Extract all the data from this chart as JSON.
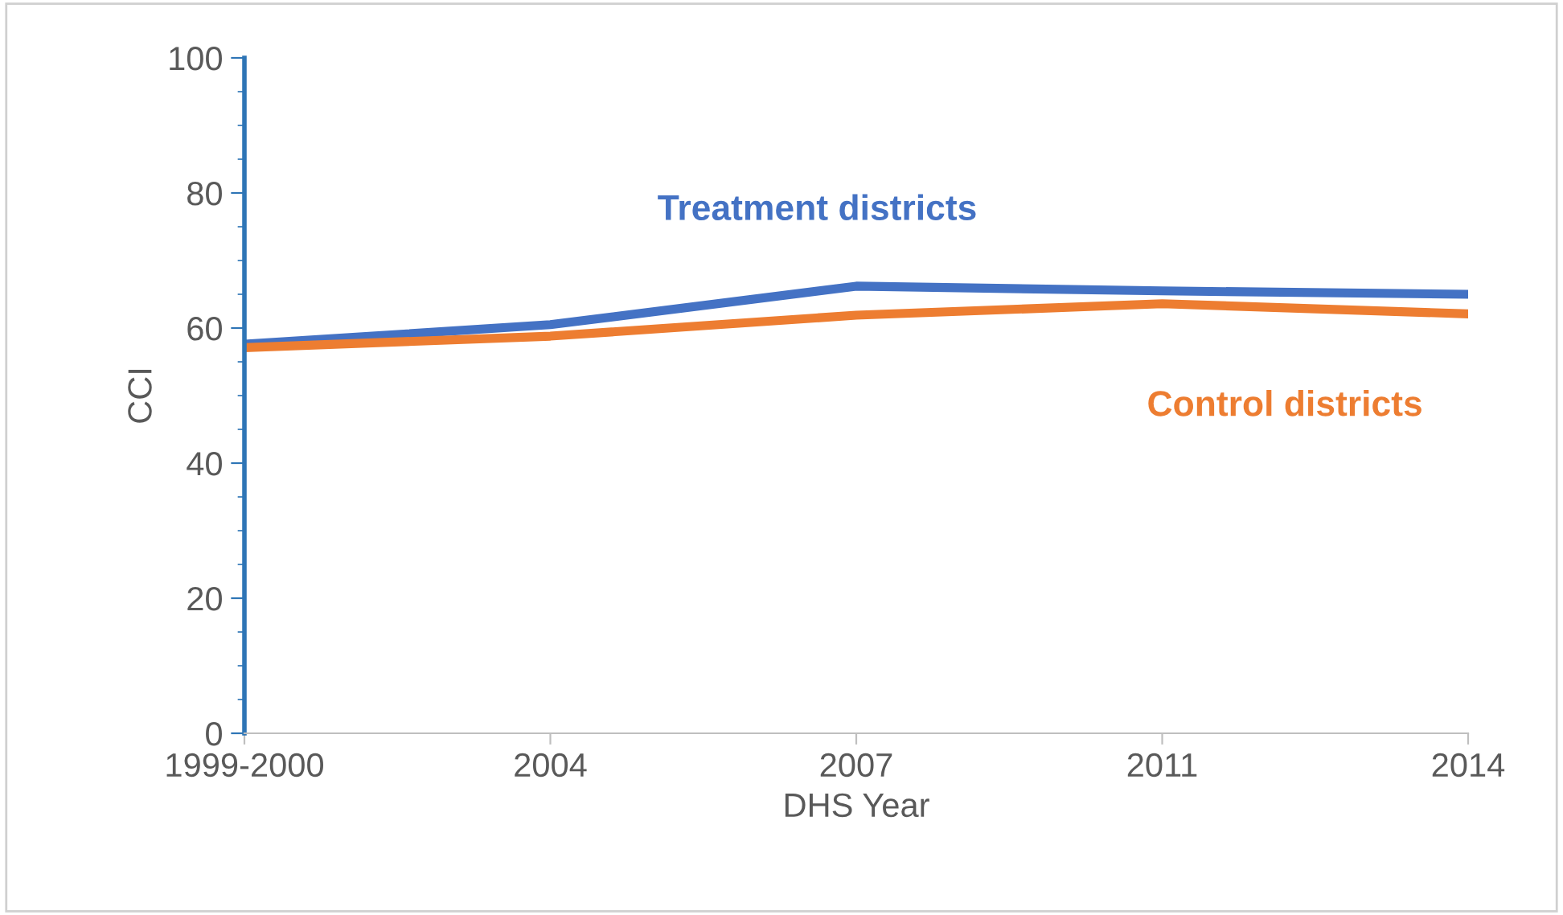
{
  "chart_data": {
    "type": "line",
    "xlabel": "DHS Year",
    "ylabel": "CCI",
    "categories": [
      "1999-2000",
      "2004",
      "2007",
      "2011",
      "2014"
    ],
    "ylim": [
      0,
      100
    ],
    "yticks": [
      0,
      20,
      40,
      60,
      80,
      100
    ],
    "grid": false,
    "legend": false,
    "marker": "none",
    "line_style": "solid",
    "series": [
      {
        "name": "Treatment districts",
        "color": "#4472c4",
        "values": [
          57.6,
          60.5,
          66.2,
          65.5,
          65.0
        ]
      },
      {
        "name": "Control districts",
        "color": "#ed7d31",
        "values": [
          57.1,
          58.8,
          61.9,
          63.6,
          62.1
        ]
      }
    ]
  }
}
